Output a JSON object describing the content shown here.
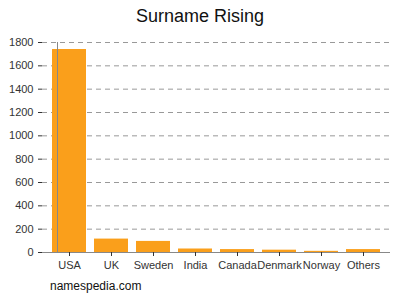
{
  "chart_data": {
    "type": "bar",
    "title": "Surname Rising",
    "categories": [
      "USA",
      "UK",
      "Sweden",
      "India",
      "Canada",
      "Denmark",
      "Norway",
      "Others"
    ],
    "values": [
      1740,
      115,
      95,
      30,
      25,
      20,
      10,
      25
    ],
    "color": "#fa9f1b",
    "ylim": [
      0,
      1800
    ],
    "yticks": [
      0,
      200,
      400,
      600,
      800,
      1000,
      1200,
      1400,
      1600,
      1800
    ],
    "grid": true,
    "caption": "namespedia.com"
  }
}
